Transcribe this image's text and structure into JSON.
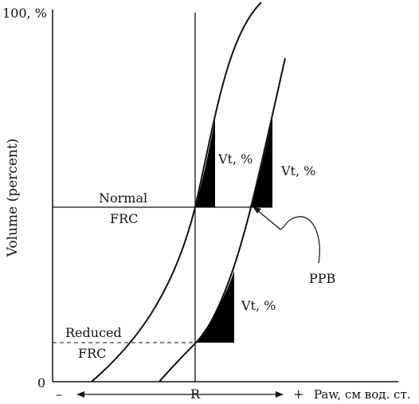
{
  "y_axis": {
    "title": "Volume (percent)",
    "top_tick": "100, %",
    "origin_tick": "0"
  },
  "x_axis": {
    "minus": "–",
    "plus": "+",
    "center": "R",
    "title": "Paw, см вод. ст."
  },
  "levels": {
    "normal": [
      "Normal",
      "FRC"
    ],
    "reduced": [
      "Reduced",
      "FRC"
    ]
  },
  "annotations": {
    "vt_normal": "Vt, %",
    "vt_ppb": "Vt, %",
    "vt_reduced": "Vt, %",
    "ppb": "PPB"
  },
  "colors": {
    "ink": "#111111",
    "fill": "#000000"
  }
}
